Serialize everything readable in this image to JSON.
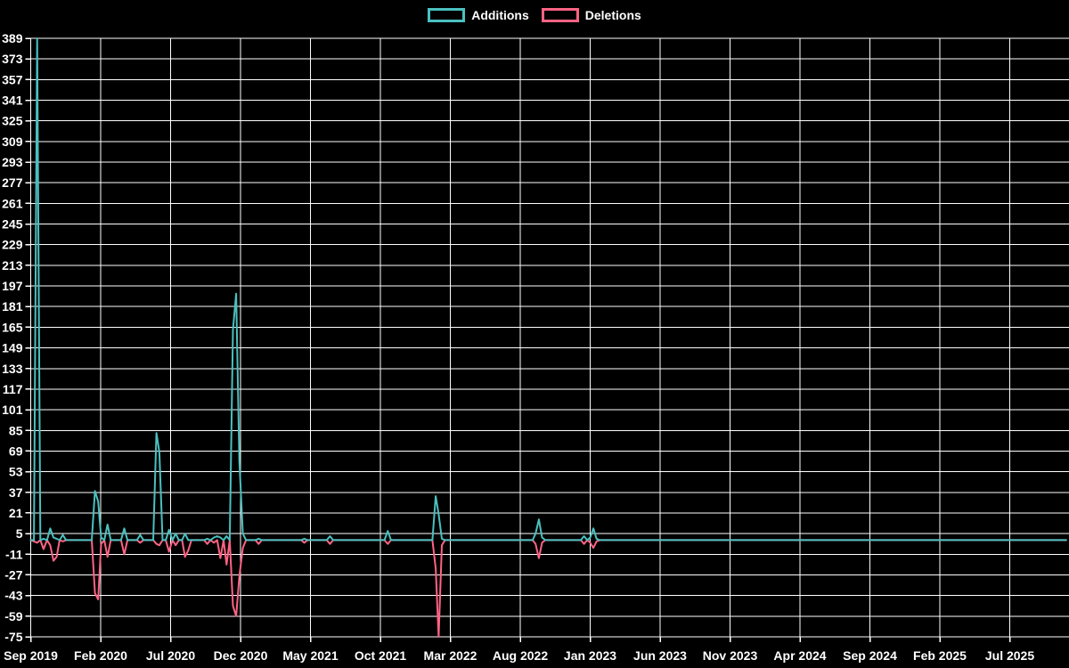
{
  "chart": {
    "background_color": "#000000",
    "grid_color": "#ffffff",
    "text_color": "#ffffff",
    "accent_additions": "#4bc0c0",
    "accent_deletions": "#ff6384"
  },
  "chart_data": {
    "type": "line",
    "title": "",
    "legend_position": "top",
    "grid": true,
    "legend": [
      {
        "label": "Additions",
        "color": "#4bc0c0"
      },
      {
        "label": "Deletions",
        "color": "#ff6384"
      }
    ],
    "x_axis": {
      "start": "2019-09-01",
      "end": "2025-11-02",
      "interval": "weekly",
      "tick_interval_months": 5,
      "tick_labels": [
        "Sep 2019",
        "Feb 2020",
        "Jul 2020",
        "Dec 2020",
        "May 2021",
        "Oct 2021",
        "Mar 2022",
        "Aug 2022",
        "Jan 2023",
        "Jun 2023",
        "Nov 2023",
        "Apr 2024",
        "Sep 2024",
        "Feb 2025",
        "Jul 2025"
      ]
    },
    "y_axis": {
      "min": -75,
      "max": 389,
      "step": 16,
      "tick_labels": [
        389,
        373,
        357,
        341,
        325,
        309,
        293,
        277,
        261,
        245,
        229,
        213,
        197,
        181,
        165,
        149,
        133,
        117,
        101,
        85,
        69,
        53,
        37,
        21,
        5,
        -11,
        -27,
        -43,
        -59,
        -75
      ]
    },
    "series": [
      {
        "name": "Additions",
        "color": "#4bc0c0",
        "default_value": 0,
        "points": {
          "2019-09-15": 389,
          "2019-09-29": 1,
          "2019-10-13": 9,
          "2019-10-20": 2,
          "2019-10-27": 1,
          "2019-11-10": 4,
          "2020-01-19": 38,
          "2020-01-26": 30,
          "2020-02-02": 2,
          "2020-02-16": 12,
          "2020-03-22": 9,
          "2020-04-26": 4,
          "2020-05-31": 83,
          "2020-06-07": 68,
          "2020-06-28": 8,
          "2020-07-12": 5,
          "2020-08-02": 5,
          "2020-09-20": 1,
          "2020-10-04": 2,
          "2020-10-11": 3,
          "2020-10-18": 2,
          "2020-11-01": 3,
          "2020-11-15": 163,
          "2020-11-22": 191,
          "2020-11-29": 61,
          "2020-12-06": 5,
          "2021-01-10": 1,
          "2021-04-18": 1,
          "2021-06-13": 3,
          "2021-10-17": 7,
          "2022-01-30": 34,
          "2022-02-06": 20,
          "2022-02-13": 1,
          "2022-09-04": 5,
          "2022-09-11": 16,
          "2022-09-18": 2,
          "2022-12-18": 3,
          "2023-01-01": 2,
          "2023-01-08": 9,
          "2023-01-15": 1
        }
      },
      {
        "name": "Deletions",
        "color": "#ff6384",
        "default_value": 0,
        "points": {
          "2019-09-08": -1,
          "2019-09-15": -2,
          "2019-09-29": -7,
          "2019-10-13": -4,
          "2019-10-20": -16,
          "2019-10-27": -13,
          "2019-11-10": -1,
          "2020-01-19": -41,
          "2020-01-26": -46,
          "2020-02-02": -3,
          "2020-02-16": -13,
          "2020-03-22": -11,
          "2020-04-26": -2,
          "2020-05-31": -3,
          "2020-06-07": -4,
          "2020-06-28": -9,
          "2020-07-12": -4,
          "2020-08-02": -13,
          "2020-08-09": -8,
          "2020-09-20": -3,
          "2020-10-04": -2,
          "2020-10-18": -14,
          "2020-11-01": -19,
          "2020-11-15": -51,
          "2020-11-22": -59,
          "2020-11-29": -28,
          "2020-12-06": -6,
          "2021-01-10": -3,
          "2021-04-18": -2,
          "2021-06-13": -3,
          "2021-10-17": -3,
          "2022-01-30": -22,
          "2022-02-06": -75,
          "2022-02-13": -4,
          "2022-09-04": -3,
          "2022-09-11": -14,
          "2022-09-18": -2,
          "2022-12-18": -3,
          "2023-01-01": -2,
          "2023-01-08": -6,
          "2023-01-15": -1
        }
      }
    ]
  }
}
